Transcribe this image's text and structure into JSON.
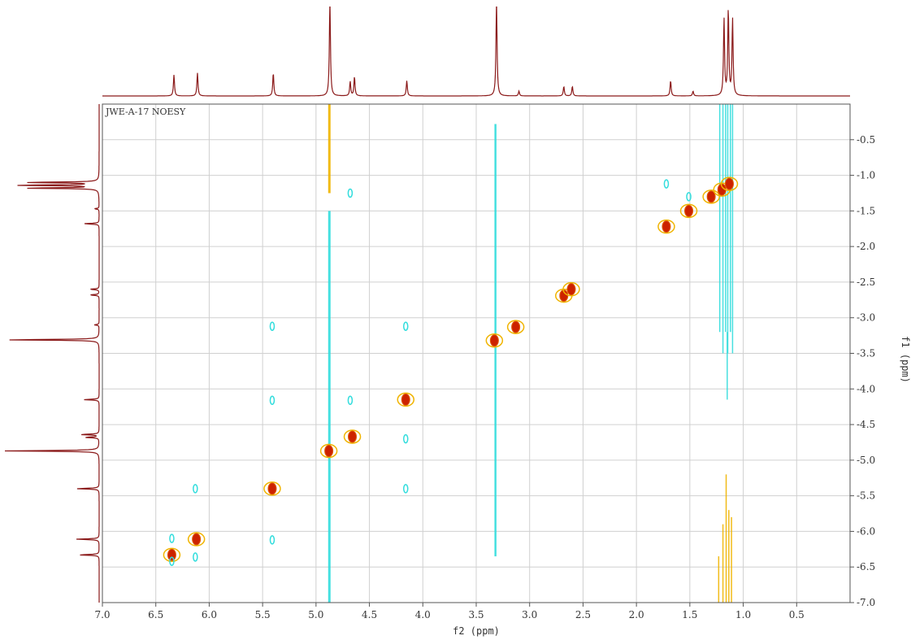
{
  "chart_data": {
    "type": "contour-2d-nmr",
    "title": "JWE-A-17  NOESY",
    "xlabel": "f2 (ppm)",
    "ylabel": "f1 (ppm)",
    "xlim": [
      7.0,
      0.0
    ],
    "ylim": [
      0.0,
      7.0
    ],
    "x_ticks": [
      "7.0",
      "6.5",
      "6.0",
      "5.5",
      "5.0",
      "4.5",
      "4.0",
      "3.5",
      "3.0",
      "2.5",
      "2.0",
      "1.5",
      "1.0",
      "0.5"
    ],
    "y_ticks": [
      "0.5",
      "1.0",
      "1.5",
      "2.0",
      "2.5",
      "3.0",
      "3.5",
      "4.0",
      "4.5",
      "5.0",
      "5.5",
      "6.0",
      "6.5",
      "7.0"
    ],
    "grid": true,
    "colors": {
      "positive_core": "#cc2200",
      "positive_ring": "#f0b400",
      "negative": "#33dddd",
      "projection": "#8b1a1a",
      "grid": "#d0d0d0"
    },
    "projection_peaks": [
      {
        "ppm": 6.33,
        "height": 0.22
      },
      {
        "ppm": 6.11,
        "height": 0.24
      },
      {
        "ppm": 5.4,
        "height": 0.24
      },
      {
        "ppm": 4.87,
        "height": 1.0
      },
      {
        "ppm": 4.68,
        "height": 0.15
      },
      {
        "ppm": 4.64,
        "height": 0.2
      },
      {
        "ppm": 4.15,
        "height": 0.16
      },
      {
        "ppm": 3.31,
        "height": 1.0
      },
      {
        "ppm": 3.1,
        "height": 0.05
      },
      {
        "ppm": 2.68,
        "height": 0.1
      },
      {
        "ppm": 2.6,
        "height": 0.1
      },
      {
        "ppm": 1.68,
        "height": 0.16
      },
      {
        "ppm": 1.47,
        "height": 0.05
      },
      {
        "ppm": 1.18,
        "height": 0.8
      },
      {
        "ppm": 1.14,
        "height": 0.9
      },
      {
        "ppm": 1.1,
        "height": 0.8
      }
    ],
    "diagonal_peaks": [
      {
        "f2": 6.35,
        "f1": 6.33
      },
      {
        "f2": 6.12,
        "f1": 6.11
      },
      {
        "f2": 5.41,
        "f1": 5.4
      },
      {
        "f2": 4.88,
        "f1": 4.87
      },
      {
        "f2": 4.66,
        "f1": 4.67
      },
      {
        "f2": 4.16,
        "f1": 4.15
      },
      {
        "f2": 3.33,
        "f1": 3.32
      },
      {
        "f2": 3.13,
        "f1": 3.13
      },
      {
        "f2": 2.68,
        "f1": 2.69
      },
      {
        "f2": 2.61,
        "f1": 2.6
      },
      {
        "f2": 1.72,
        "f1": 1.72
      },
      {
        "f2": 1.51,
        "f1": 1.5
      },
      {
        "f2": 1.3,
        "f1": 1.3
      },
      {
        "f2": 1.2,
        "f1": 1.2
      },
      {
        "f2": 1.13,
        "f1": 1.12
      }
    ],
    "cross_peaks": [
      {
        "f2": 6.35,
        "f1": 6.1
      },
      {
        "f2": 6.35,
        "f1": 6.42
      },
      {
        "f2": 6.13,
        "f1": 6.36
      },
      {
        "f2": 6.13,
        "f1": 5.4
      },
      {
        "f2": 5.41,
        "f1": 6.12
      },
      {
        "f2": 5.41,
        "f1": 4.16
      },
      {
        "f2": 5.41,
        "f1": 3.12
      },
      {
        "f2": 4.68,
        "f1": 4.16
      },
      {
        "f2": 4.68,
        "f1": 1.25
      },
      {
        "f2": 4.16,
        "f1": 5.4
      },
      {
        "f2": 4.16,
        "f1": 4.7
      },
      {
        "f2": 4.16,
        "f1": 3.12
      },
      {
        "f2": 1.72,
        "f1": 1.12
      },
      {
        "f2": 1.51,
        "f1": 1.3
      }
    ]
  }
}
